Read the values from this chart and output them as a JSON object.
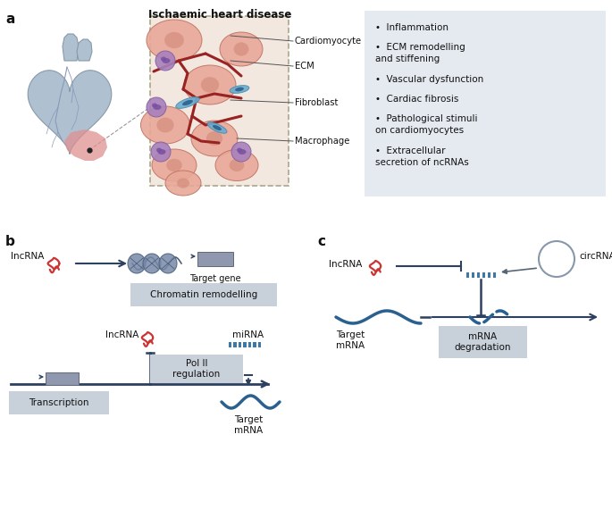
{
  "panel_a_label": "a",
  "panel_b_label": "b",
  "panel_c_label": "c",
  "heart_disease_title": "Ischaemic heart disease",
  "bullet_items": [
    "Inflammation",
    "ECM remodelling\n  and stiffening",
    "Vascular dysfunction",
    "Cardiac fibrosis",
    "Pathological stimuli\n  on cardiomyocytes",
    "Extracellular\n  secretion of ncRNAs"
  ],
  "bg_blue": "#e5eaf0",
  "bg_gray": "#c8d0da",
  "arrow_dark": "#2d4060",
  "red_rna": "#cc3333",
  "blue_wave": "#2a6090",
  "blue_teeth": "#3a7aaa",
  "text_dark": "#111111",
  "heart_body": "#afc0d0",
  "heart_edge": "#8899aa",
  "heart_red": "#e08080",
  "mic_bg": "#f0e0d8",
  "cell_pink": "#e8a898",
  "cell_edge": "#c07060",
  "ecm_red": "#992222",
  "fibro_blue": "#6aaccf",
  "macro_purple": "#a880bc",
  "coil_fill": "#7888a8",
  "coil_edge": "#4a607a",
  "gene_fill": "#9098b0",
  "gene_edge": "#606878"
}
